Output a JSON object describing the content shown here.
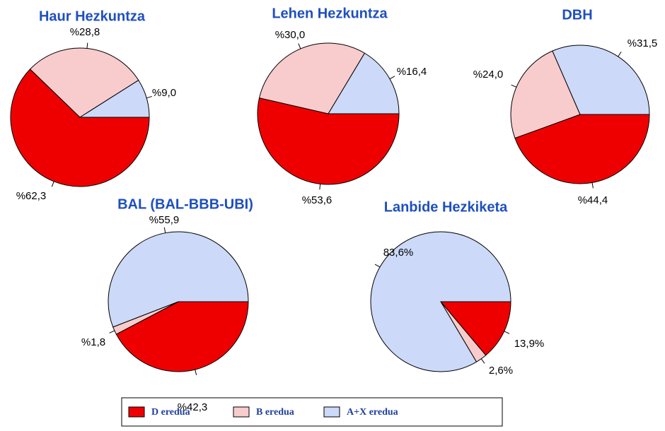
{
  "chart_data": [
    {
      "type": "pie",
      "title": "Haur Hezkuntza",
      "categories": [
        "D eredua",
        "B eredua",
        "A+X eredua"
      ],
      "colors": [
        "#ee0000",
        "#f8cccc",
        "#ccd9f8"
      ],
      "values": [
        62.3,
        28.8,
        9.0
      ],
      "value_labels": [
        "%62,3",
        "%28,8",
        "%9,0"
      ]
    },
    {
      "type": "pie",
      "title": "Lehen Hezkuntza",
      "categories": [
        "D eredua",
        "B eredua",
        "A+X eredua"
      ],
      "colors": [
        "#ee0000",
        "#f8cccc",
        "#ccd9f8"
      ],
      "values": [
        53.6,
        30.0,
        16.4
      ],
      "value_labels": [
        "%53,6",
        "%30,0",
        "%16,4"
      ]
    },
    {
      "type": "pie",
      "title": "DBH",
      "categories": [
        "D eredua",
        "B eredua",
        "A+X eredua"
      ],
      "colors": [
        "#ee0000",
        "#f8cccc",
        "#ccd9f8"
      ],
      "values": [
        44.4,
        24.0,
        31.5
      ],
      "value_labels": [
        "%44,4",
        "%24,0",
        "%31,5"
      ]
    },
    {
      "type": "pie",
      "title": "BAL (BAL-BBB-UBI)",
      "categories": [
        "D eredua",
        "B eredua",
        "A+X eredua"
      ],
      "colors": [
        "#ee0000",
        "#f8cccc",
        "#ccd9f8"
      ],
      "values": [
        42.3,
        1.8,
        55.9
      ],
      "value_labels": [
        "%42,3",
        "%1,8",
        "%55,9"
      ]
    },
    {
      "type": "pie",
      "title": "Lanbide Hezkiketa",
      "categories": [
        "D eredua",
        "B eredua",
        "A+X eredua"
      ],
      "colors": [
        "#ee0000",
        "#f8cccc",
        "#ccd9f8"
      ],
      "values": [
        13.9,
        2.6,
        83.6
      ],
      "value_labels": [
        "13,9%",
        "2,6%",
        "83,6%"
      ]
    }
  ]
}
